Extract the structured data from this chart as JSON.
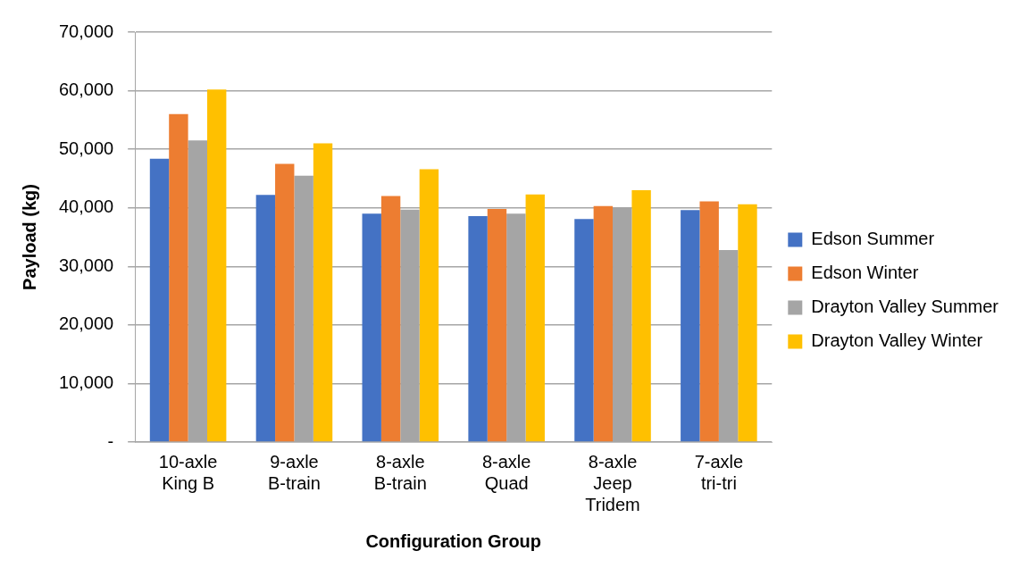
{
  "chart_data": {
    "type": "bar",
    "xlabel": "Configuration Group",
    "ylabel": "Payload (kg)",
    "categories": [
      "10-axle King B",
      "9-axle B-train",
      "8-axle B-train",
      "8-axle Quad",
      "8-axle Jeep Tridem",
      "7-axle tri-tri"
    ],
    "series": [
      {
        "name": "Edson Summer",
        "color": "#4472c4",
        "values": [
          48400,
          42200,
          39000,
          38600,
          38100,
          39600
        ]
      },
      {
        "name": "Edson Winter",
        "color": "#ed7d31",
        "values": [
          56000,
          47500,
          42000,
          39800,
          40300,
          41100
        ]
      },
      {
        "name": "Drayton Valley Summer",
        "color": "#a5a5a5",
        "values": [
          51500,
          45500,
          39700,
          39000,
          40000,
          32800
        ]
      },
      {
        "name": "Drayton Valley Winter",
        "color": "#ffc000",
        "values": [
          60200,
          51000,
          46600,
          42300,
          43000,
          40600
        ]
      }
    ],
    "ylim": [
      0,
      70000
    ],
    "yticks": [
      {
        "value": 0,
        "label": "-"
      },
      {
        "value": 10000,
        "label": "10,000"
      },
      {
        "value": 20000,
        "label": "20,000"
      },
      {
        "value": 30000,
        "label": "30,000"
      },
      {
        "value": 40000,
        "label": "40,000"
      },
      {
        "value": 50000,
        "label": "50,000"
      },
      {
        "value": 60000,
        "label": "60,000"
      },
      {
        "value": 70000,
        "label": "70,000"
      }
    ],
    "grid": "y",
    "legend": "right"
  }
}
